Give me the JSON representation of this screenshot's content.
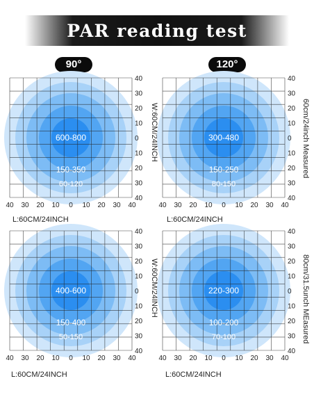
{
  "title": "PAR reading test",
  "angles": {
    "left": "90°",
    "right": "120°"
  },
  "panels": [
    {
      "id": "p1",
      "center_value": "600-800",
      "middle_value": "150-350",
      "outer_value": "60-120",
      "bottom_label": "L:60CM/24INCH",
      "side_label": "W:60CM/24INCH",
      "x_ticks": [
        "40",
        "30",
        "20",
        "10",
        "0",
        "10",
        "20",
        "30",
        "40"
      ],
      "y_ticks": [
        "40",
        "30",
        "20",
        "10",
        "0",
        "10",
        "20",
        "30",
        "40"
      ]
    },
    {
      "id": "p2",
      "center_value": "300-480",
      "middle_value": "150-250",
      "outer_value": "80-150",
      "bottom_label": "L:60CM/24INCH",
      "side_label": "60cm/24inch Measured",
      "x_ticks": [
        "40",
        "30",
        "20",
        "10",
        "0",
        "10",
        "20",
        "30",
        "40"
      ],
      "y_ticks": [
        "40",
        "30",
        "20",
        "10",
        "0",
        "10",
        "20",
        "30",
        "40"
      ]
    },
    {
      "id": "p3",
      "center_value": "400-600",
      "middle_value": "150-400",
      "outer_value": "50-150",
      "bottom_label": "L:60CM/24INCH",
      "side_label": "W:60CM/24INCH",
      "x_ticks": [
        "40",
        "30",
        "20",
        "10",
        "0",
        "10",
        "20",
        "30",
        "40"
      ],
      "y_ticks": [
        "40",
        "30",
        "20",
        "10",
        "0",
        "10",
        "20",
        "30",
        "40"
      ]
    },
    {
      "id": "p4",
      "center_value": "220-300",
      "middle_value": "100-200",
      "outer_value": "70-100",
      "bottom_label": "L:60CM/24INCH",
      "side_label": "80cm/31.5unch MEasured",
      "x_ticks": [
        "40",
        "30",
        "20",
        "10",
        "0",
        "10",
        "20",
        "30",
        "40"
      ],
      "y_ticks": [
        "40",
        "30",
        "20",
        "10",
        "0",
        "10",
        "20",
        "30",
        "40"
      ]
    }
  ],
  "colors": {
    "ring_outer": "#cfe6fb",
    "ring_3": "#a8d2f8",
    "ring_2": "#7dbcf5",
    "ring_1": "#52a5f2",
    "core": "#2b8ef0",
    "grid": "#222222"
  }
}
